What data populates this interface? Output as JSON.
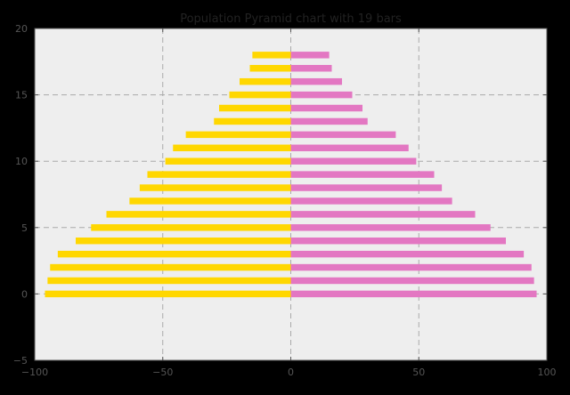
{
  "chart_data": {
    "type": "bar",
    "orientation": "horizontal",
    "title": "Population Pyramid chart with 19 bars",
    "xlabel": "",
    "ylabel": "",
    "xlim": [
      -100,
      100
    ],
    "ylim": [
      -5,
      20
    ],
    "x_ticks": [
      -100,
      -50,
      0,
      50,
      100
    ],
    "y_ticks": [
      -5,
      0,
      5,
      10,
      15,
      20
    ],
    "x_tick_labels": [
      "−100",
      "−50",
      "0",
      "50",
      "100"
    ],
    "y_tick_labels": [
      "−5",
      "0",
      "5",
      "10",
      "15",
      "20"
    ],
    "grid": true,
    "legend": "none",
    "categories": [
      0,
      1,
      2,
      3,
      4,
      5,
      6,
      7,
      8,
      9,
      10,
      11,
      12,
      13,
      14,
      15,
      16,
      17,
      18
    ],
    "series": [
      {
        "color": "#FFD700",
        "values": [
          -96,
          -95,
          -94,
          -91,
          -84,
          -78,
          -72,
          -63,
          -59,
          -56,
          -49,
          -46,
          -41,
          -30,
          -28,
          -24,
          -20,
          -16,
          -15
        ]
      },
      {
        "color": "#E377C2",
        "values": [
          96,
          95,
          94,
          91,
          84,
          78,
          72,
          63,
          59,
          56,
          49,
          46,
          41,
          30,
          28,
          24,
          20,
          16,
          15
        ]
      }
    ]
  },
  "style": {
    "figure_background": "#000000",
    "plot_background": "#EEEEEE",
    "axis_color": "#555555",
    "tick_label_color": "#555555",
    "grid_color": "#AAAAAA",
    "title_color": "#222222"
  }
}
